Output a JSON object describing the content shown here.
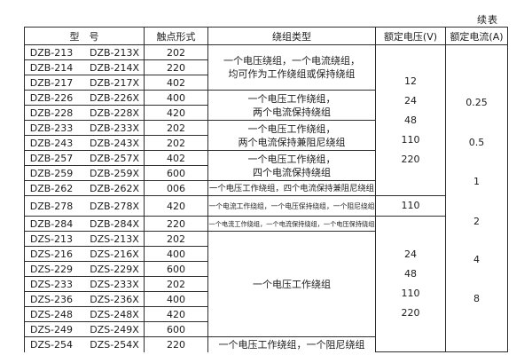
{
  "continued_label": "续表",
  "colors": {
    "border": "#2e2e2e",
    "text": "#1c1c1c",
    "background": "#ffffff"
  },
  "table": {
    "headers": [
      "型　号",
      "触点形式",
      "绕组类型",
      "额定电压(V)",
      "额定电流(A)"
    ],
    "rows": [
      {
        "model": "DZB-213",
        "model_x": "DZB-213X",
        "contact": "202"
      },
      {
        "model": "DZB-214",
        "model_x": "DZB-214X",
        "contact": "220"
      },
      {
        "model": "DZB-217",
        "model_x": "DZB-217X",
        "contact": "402"
      },
      {
        "model": "DZB-226",
        "model_x": "DZB-226X",
        "contact": "400"
      },
      {
        "model": "DZB-228",
        "model_x": "DZB-228X",
        "contact": "420"
      },
      {
        "model": "DZB-233",
        "model_x": "DZB-233X",
        "contact": "202"
      },
      {
        "model": "DZB-243",
        "model_x": "DZB-243X",
        "contact": "202"
      },
      {
        "model": "DZB-257",
        "model_x": "DZB-257X",
        "contact": "402"
      },
      {
        "model": "DZB-259",
        "model_x": "DZB-259X",
        "contact": "600"
      },
      {
        "model": "DZB-262",
        "model_x": "DZB-262X",
        "contact": "006"
      },
      {
        "model": "DZB-278",
        "model_x": "DZB-278X",
        "contact": "420"
      },
      {
        "model": "DZB-284",
        "model_x": "DZB-284X",
        "contact": "220"
      },
      {
        "model": "DZS-213",
        "model_x": "DZS-213X",
        "contact": "202"
      },
      {
        "model": "DZS-216",
        "model_x": "DZS-216X",
        "contact": "400"
      },
      {
        "model": "DZS-229",
        "model_x": "DZS-229X",
        "contact": "600"
      },
      {
        "model": "DZS-233",
        "model_x": "DZS-233X",
        "contact": "202"
      },
      {
        "model": "DZS-236",
        "model_x": "DZS-236X",
        "contact": "400"
      },
      {
        "model": "DZS-248",
        "model_x": "DZS-248X",
        "contact": "420"
      },
      {
        "model": "DZS-249",
        "model_x": "DZS-249X",
        "contact": "600"
      },
      {
        "model": "DZS-254",
        "model_x": "DZS-254X",
        "contact": "220"
      }
    ],
    "winding_groups": [
      {
        "start": 0,
        "span": 3,
        "lines": [
          "一个电压绕组，一个电流绕组，",
          "均可作为工作绕组或保持绕组"
        ]
      },
      {
        "start": 3,
        "span": 2,
        "lines": [
          "一个电压工作绕组，",
          "两个电流保持绕组"
        ]
      },
      {
        "start": 5,
        "span": 2,
        "lines": [
          "一个电压工作绕组，",
          "两个电流保持兼阻尼绕组"
        ]
      },
      {
        "start": 7,
        "span": 2,
        "lines": [
          "一个电压工作绕组，",
          "四个电流保持绕组"
        ]
      },
      {
        "start": 9,
        "span": 1,
        "lines": [
          "一个电压工作绕组，四个电流保持兼阻尼绕组"
        ]
      },
      {
        "start": 10,
        "span": 1,
        "lines": [
          "一个电流工作绕组，一个电压保持绕组，一个阻尼绕组"
        ]
      },
      {
        "start": 11,
        "span": 1,
        "lines": [
          "一个电流工作绕组，一个电流保持绕组，一个电压保持绕组"
        ]
      },
      {
        "start": 12,
        "span": 7,
        "lines": [
          "一个电压工作绕组"
        ]
      },
      {
        "start": 19,
        "span": 1,
        "lines": [
          "一个电压工作绕组，一个阻尼绕组"
        ]
      }
    ],
    "voltage_groups": [
      {
        "start": 0,
        "span": 10,
        "values": [
          "12",
          "24",
          "48",
          "110",
          "220"
        ]
      },
      {
        "start": 10,
        "span": 1,
        "values": [
          "110"
        ]
      },
      {
        "start": 11,
        "span": 9,
        "values": [
          "24",
          "48",
          "110",
          "220"
        ]
      }
    ],
    "current_groups": [
      {
        "start": 0,
        "span": 20,
        "values": [
          "0.25",
          "0.5",
          "1",
          "2",
          "4",
          "8"
        ]
      }
    ]
  }
}
